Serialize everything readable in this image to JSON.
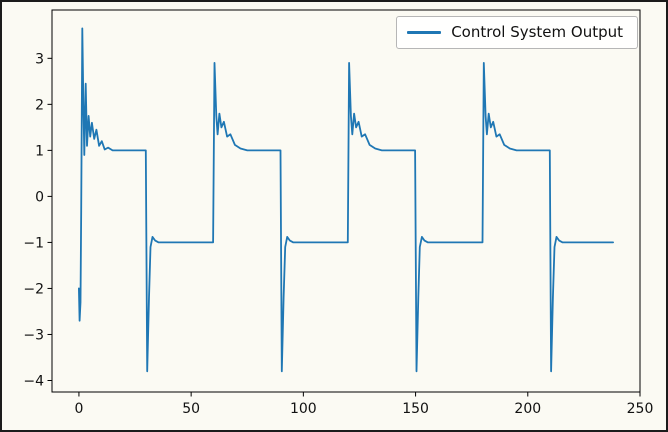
{
  "figure": {
    "background": "#fbfaf3",
    "border_color": "#1b1b1b"
  },
  "chart_data": {
    "type": "line",
    "title": "",
    "xlabel": "",
    "ylabel": "",
    "grid": false,
    "xlim": [
      -12,
      250
    ],
    "ylim": [
      -4.25,
      4.05
    ],
    "xticks": [
      0,
      50,
      100,
      150,
      200,
      250
    ],
    "yticks": [
      -4,
      -3,
      -2,
      -1,
      0,
      1,
      2,
      3
    ],
    "legend": {
      "position": "upper right",
      "entries": [
        {
          "label": "Control System Output",
          "color": "#1f77b4"
        }
      ]
    },
    "series": [
      {
        "name": "Control System Output",
        "color": "#1f77b4",
        "line_width": 1.8,
        "points": [
          [
            0,
            -2.0
          ],
          [
            0.3,
            -2.7
          ],
          [
            0.7,
            -2.3
          ],
          [
            1.0,
            -0.3
          ],
          [
            1.5,
            3.65
          ],
          [
            2.0,
            2.0
          ],
          [
            2.4,
            0.9
          ],
          [
            3.0,
            2.45
          ],
          [
            3.6,
            1.1
          ],
          [
            4.3,
            1.75
          ],
          [
            5.0,
            1.3
          ],
          [
            5.8,
            1.6
          ],
          [
            6.8,
            1.25
          ],
          [
            7.8,
            1.45
          ],
          [
            9.0,
            1.1
          ],
          [
            10.2,
            1.2
          ],
          [
            11.5,
            1.02
          ],
          [
            13,
            1.06
          ],
          [
            15,
            1.0
          ],
          [
            29.8,
            1.0
          ],
          [
            30.4,
            -3.8
          ],
          [
            31.2,
            -2.2
          ],
          [
            31.9,
            -1.1
          ],
          [
            32.8,
            -0.88
          ],
          [
            34,
            -0.96
          ],
          [
            35.5,
            -1.0
          ],
          [
            59.8,
            -1.0
          ],
          [
            60.4,
            2.9
          ],
          [
            61.2,
            1.75
          ],
          [
            61.8,
            1.35
          ],
          [
            62.6,
            1.8
          ],
          [
            63.5,
            1.5
          ],
          [
            64.6,
            1.62
          ],
          [
            66,
            1.3
          ],
          [
            67.5,
            1.35
          ],
          [
            69.5,
            1.12
          ],
          [
            72,
            1.04
          ],
          [
            75,
            1.0
          ],
          [
            89.8,
            1.0
          ],
          [
            90.4,
            -3.8
          ],
          [
            91.2,
            -2.2
          ],
          [
            91.9,
            -1.1
          ],
          [
            92.8,
            -0.88
          ],
          [
            94,
            -0.96
          ],
          [
            95.5,
            -1.0
          ],
          [
            119.8,
            -1.0
          ],
          [
            120.4,
            2.9
          ],
          [
            121.2,
            1.75
          ],
          [
            121.8,
            1.35
          ],
          [
            122.6,
            1.8
          ],
          [
            123.5,
            1.5
          ],
          [
            124.6,
            1.62
          ],
          [
            126,
            1.3
          ],
          [
            127.5,
            1.35
          ],
          [
            129.5,
            1.12
          ],
          [
            132,
            1.04
          ],
          [
            135,
            1.0
          ],
          [
            149.8,
            1.0
          ],
          [
            150.4,
            -3.8
          ],
          [
            151.2,
            -2.2
          ],
          [
            151.9,
            -1.1
          ],
          [
            152.8,
            -0.88
          ],
          [
            154,
            -0.96
          ],
          [
            155.5,
            -1.0
          ],
          [
            179.8,
            -1.0
          ],
          [
            180.4,
            2.9
          ],
          [
            181.2,
            1.75
          ],
          [
            181.8,
            1.35
          ],
          [
            182.6,
            1.8
          ],
          [
            183.5,
            1.5
          ],
          [
            184.6,
            1.62
          ],
          [
            186,
            1.3
          ],
          [
            187.5,
            1.35
          ],
          [
            189.5,
            1.12
          ],
          [
            192,
            1.04
          ],
          [
            195,
            1.0
          ],
          [
            209.8,
            1.0
          ],
          [
            210.4,
            -3.8
          ],
          [
            211.2,
            -2.2
          ],
          [
            211.9,
            -1.1
          ],
          [
            212.8,
            -0.88
          ],
          [
            214,
            -0.96
          ],
          [
            215.5,
            -1.0
          ],
          [
            238,
            -1.0
          ]
        ]
      }
    ]
  }
}
